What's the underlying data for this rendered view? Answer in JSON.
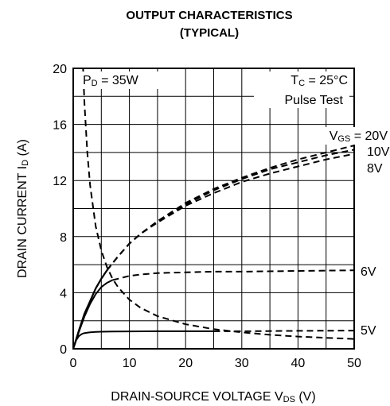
{
  "chart_data": {
    "type": "line",
    "title_line1": "OUTPUT CHARACTERISTICS",
    "title_line2": "(TYPICAL)",
    "xlabel": {
      "main": "DRAIN-SOURCE VOLTAGE  V",
      "sub": "DS",
      "unit": " (V)"
    },
    "ylabel": {
      "main": "DRAIN CURRENT  I",
      "sub": "D",
      "unit": " (A)"
    },
    "xlim": [
      0,
      50
    ],
    "ylim": [
      0,
      20
    ],
    "x_ticks": [
      0,
      10,
      20,
      30,
      40,
      50
    ],
    "y_ticks": [
      0,
      4,
      8,
      12,
      16,
      20
    ],
    "grid": true,
    "annotations": {
      "power": {
        "main": "P",
        "sub": "D",
        "rest": " = 35W"
      },
      "tc": {
        "main": "T",
        "sub": "C",
        "rest": " = 25°C"
      },
      "pulse": "Pulse Test"
    },
    "series": [
      {
        "name": "VGS = 20V",
        "label": {
          "main": "V",
          "sub": "GS",
          "rest": " = 20V"
        },
        "x": [
          0,
          1,
          2,
          3,
          4,
          5,
          6,
          7,
          8,
          10,
          12,
          15,
          20,
          25,
          30,
          35,
          40,
          45,
          50
        ],
        "y": [
          0,
          1.3,
          2.5,
          3.4,
          4.3,
          5.0,
          5.6,
          6.1,
          6.6,
          7.5,
          8.2,
          9.1,
          10.4,
          11.4,
          12.2,
          12.9,
          13.5,
          14.0,
          14.5
        ]
      },
      {
        "name": "10V",
        "label": {
          "main": "10V",
          "sub": "",
          "rest": ""
        },
        "x": [
          0,
          1,
          2,
          3,
          4,
          5,
          6,
          7,
          8,
          10,
          12,
          15,
          20,
          25,
          30,
          35,
          40,
          45,
          50
        ],
        "y": [
          0,
          1.3,
          2.5,
          3.4,
          4.3,
          5.0,
          5.6,
          6.1,
          6.6,
          7.5,
          8.2,
          9.1,
          10.3,
          11.3,
          12.1,
          12.8,
          13.3,
          13.8,
          14.2
        ]
      },
      {
        "name": "8V",
        "label": {
          "main": "8V",
          "sub": "",
          "rest": ""
        },
        "x": [
          0,
          1,
          2,
          3,
          4,
          5,
          6,
          7,
          8,
          10,
          12,
          15,
          20,
          25,
          30,
          35,
          40,
          45,
          50
        ],
        "y": [
          0,
          1.3,
          2.5,
          3.4,
          4.3,
          5.0,
          5.6,
          6.1,
          6.6,
          7.5,
          8.2,
          9.0,
          10.2,
          11.1,
          11.9,
          12.5,
          13.0,
          13.5,
          13.9
        ]
      },
      {
        "name": "6V",
        "label": {
          "main": "6V",
          "sub": "",
          "rest": ""
        },
        "x": [
          0,
          1,
          2,
          3,
          4,
          5,
          6,
          7,
          8,
          10,
          12,
          15,
          20,
          25,
          30,
          40,
          50
        ],
        "y": [
          0,
          1.2,
          2.3,
          3.2,
          3.9,
          4.4,
          4.7,
          4.9,
          5.0,
          5.2,
          5.3,
          5.4,
          5.45,
          5.5,
          5.5,
          5.55,
          5.6
        ]
      },
      {
        "name": "5V",
        "label": {
          "main": "5V",
          "sub": "",
          "rest": ""
        },
        "x": [
          0,
          0.5,
          1,
          1.5,
          2,
          3,
          4,
          5,
          7,
          10,
          15,
          20,
          25,
          30,
          40,
          50
        ],
        "y": [
          0,
          0.6,
          0.9,
          1.05,
          1.12,
          1.18,
          1.2,
          1.22,
          1.23,
          1.24,
          1.25,
          1.25,
          1.25,
          1.25,
          1.28,
          1.3
        ]
      },
      {
        "name": "PD = 35W",
        "x": [
          1.75,
          2,
          2.5,
          3,
          4,
          5,
          6,
          7,
          8,
          10,
          12,
          15,
          20,
          25,
          30,
          35,
          40,
          45,
          50
        ],
        "y": [
          20,
          17.5,
          14,
          11.67,
          8.75,
          7.0,
          5.83,
          5.0,
          4.38,
          3.5,
          2.92,
          2.33,
          1.75,
          1.4,
          1.17,
          1.0,
          0.875,
          0.78,
          0.7
        ]
      }
    ]
  }
}
